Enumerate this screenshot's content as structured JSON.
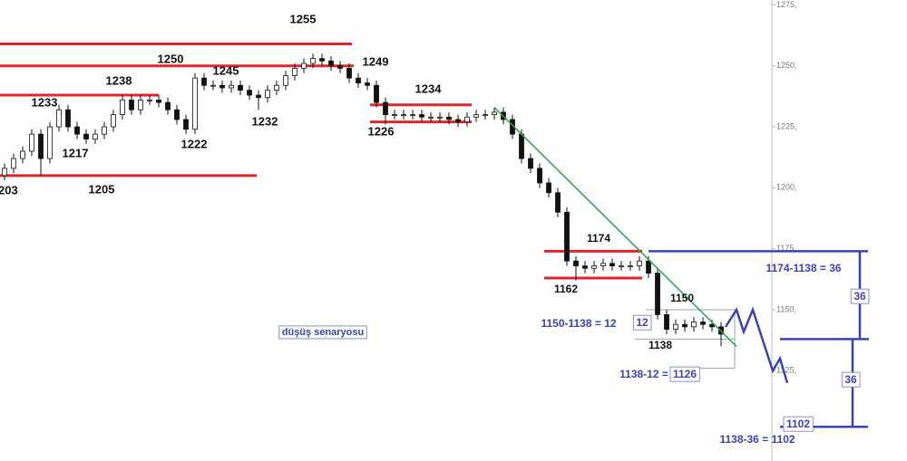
{
  "chart_data": {
    "type": "candlestick",
    "open": [
      1205,
      1208,
      1212,
      1215,
      1222,
      1212,
      1225,
      1232,
      1225,
      1222,
      1220,
      1222,
      1225,
      1230,
      1236,
      1232,
      1236,
      1236,
      1235,
      1232,
      1228,
      1224,
      1245,
      1242,
      1242,
      1241,
      1242,
      1240,
      1238,
      1237,
      1240,
      1242,
      1246,
      1249,
      1251,
      1253,
      1252,
      1250,
      1249,
      1245,
      1243,
      1242,
      1235,
      1230,
      1230,
      1230,
      1230,
      1229,
      1229,
      1229,
      1228,
      1227,
      1229,
      1230,
      1230,
      1231,
      1228,
      1222,
      1212,
      1208,
      1202,
      1198,
      1190,
      1170,
      1168,
      1167,
      1168,
      1169,
      1168,
      1168,
      1168,
      1170,
      1165,
      1148,
      1142,
      1144,
      1143,
      1145,
      1144,
      1143
    ],
    "high": [
      1210,
      1214,
      1217,
      1224,
      1224,
      1227,
      1234,
      1234,
      1227,
      1224,
      1224,
      1227,
      1232,
      1238,
      1238,
      1238,
      1238,
      1238,
      1237,
      1234,
      1230,
      1247,
      1247,
      1244,
      1244,
      1244,
      1244,
      1242,
      1240,
      1242,
      1244,
      1248,
      1251,
      1253,
      1255,
      1255,
      1254,
      1252,
      1251,
      1247,
      1245,
      1244,
      1237,
      1232,
      1232,
      1232,
      1232,
      1231,
      1231,
      1231,
      1230,
      1231,
      1232,
      1232,
      1233,
      1233,
      1230,
      1224,
      1214,
      1210,
      1204,
      1200,
      1192,
      1172,
      1170,
      1170,
      1171,
      1171,
      1170,
      1170,
      1172,
      1172,
      1167,
      1150,
      1146,
      1146,
      1147,
      1147,
      1146,
      1145
    ],
    "low": [
      1203,
      1206,
      1210,
      1213,
      1205,
      1210,
      1223,
      1223,
      1220,
      1218,
      1218,
      1220,
      1223,
      1228,
      1230,
      1230,
      1234,
      1233,
      1230,
      1226,
      1222,
      1222,
      1240,
      1240,
      1239,
      1239,
      1238,
      1236,
      1232,
      1235,
      1238,
      1240,
      1244,
      1247,
      1249,
      1250,
      1248,
      1247,
      1243,
      1241,
      1240,
      1233,
      1226,
      1228,
      1228,
      1228,
      1227,
      1227,
      1227,
      1226,
      1225,
      1225,
      1227,
      1228,
      1228,
      1226,
      1220,
      1210,
      1206,
      1200,
      1196,
      1188,
      1168,
      1162,
      1165,
      1165,
      1166,
      1166,
      1166,
      1166,
      1166,
      1163,
      1146,
      1140,
      1140,
      1141,
      1141,
      1142,
      1141,
      1135
    ],
    "close": [
      1208,
      1212,
      1215,
      1222,
      1212,
      1225,
      1232,
      1225,
      1222,
      1220,
      1222,
      1225,
      1230,
      1236,
      1232,
      1236,
      1236,
      1235,
      1232,
      1228,
      1224,
      1245,
      1242,
      1242,
      1241,
      1242,
      1240,
      1238,
      1237,
      1240,
      1242,
      1246,
      1249,
      1251,
      1253,
      1252,
      1250,
      1249,
      1245,
      1243,
      1242,
      1235,
      1230,
      1230,
      1230,
      1230,
      1229,
      1229,
      1229,
      1228,
      1227,
      1229,
      1230,
      1230,
      1231,
      1228,
      1222,
      1212,
      1208,
      1202,
      1198,
      1190,
      1170,
      1168,
      1167,
      1168,
      1169,
      1168,
      1168,
      1168,
      1170,
      1165,
      1148,
      1142,
      1144,
      1143,
      1145,
      1144,
      1143,
      1140
    ],
    "ylim": [
      1088,
      1277
    ],
    "yticks": [
      {
        "value": 1275,
        "label": "1275,"
      },
      {
        "value": 1250,
        "label": "1250,"
      },
      {
        "value": 1225,
        "label": "1225,"
      },
      {
        "value": 1200,
        "label": "1200,"
      },
      {
        "value": 1175,
        "label": "1175,"
      },
      {
        "value": 1150,
        "label": "1150,"
      },
      {
        "value": 1125,
        "label": "1125,"
      }
    ],
    "levels": [
      {
        "value": 1259,
        "color": "#e0262b"
      },
      {
        "value": 1250,
        "color": "#e0262b"
      },
      {
        "value": 1238,
        "color": "#e0262b"
      },
      {
        "value": 1205,
        "color": "#e0262b"
      },
      {
        "value": 1234,
        "color": "#e0262b"
      },
      {
        "value": 1227,
        "color": "#e0262b"
      },
      {
        "value": 1174,
        "color": "#e0262b"
      },
      {
        "value": 1163,
        "color": "#e0262b"
      },
      {
        "value": 1174,
        "color": "#3a44b0"
      },
      {
        "value": 1138,
        "color": "#3a44b0"
      },
      {
        "value": 1102,
        "color": "#3a44b0"
      },
      {
        "value": 1150,
        "color": "#9aa0b8"
      },
      {
        "value": 1138,
        "color": "#9aa0b8"
      },
      {
        "value": 1126,
        "color": "#9aa0b8"
      }
    ],
    "trendline": {
      "values": [
        1233,
        1135
      ],
      "color": "#22a845"
    },
    "projection": {
      "values": [
        1143,
        1150,
        1141,
        1150,
        1125,
        1130,
        1120
      ],
      "color": "#3a44b0"
    },
    "annotations": [
      {
        "text": "1255",
        "color": "#111"
      },
      {
        "text": "1250",
        "color": "#111"
      },
      {
        "text": "1245",
        "color": "#111"
      },
      {
        "text": "1249",
        "color": "#111"
      },
      {
        "text": "1238",
        "color": "#111"
      },
      {
        "text": "1233",
        "color": "#111"
      },
      {
        "text": "1234",
        "color": "#111"
      },
      {
        "text": "1217",
        "color": "#111"
      },
      {
        "text": "1222",
        "color": "#111"
      },
      {
        "text": "1232",
        "color": "#111"
      },
      {
        "text": "1226",
        "color": "#111"
      },
      {
        "text": "203",
        "color": "#111"
      },
      {
        "text": "1205",
        "color": "#111"
      },
      {
        "text": "1174",
        "color": "#111"
      },
      {
        "text": "1162",
        "color": "#111"
      },
      {
        "text": "1150",
        "color": "#111"
      },
      {
        "text": "1138",
        "color": "#111"
      },
      {
        "text": "1150-1138 = 12",
        "color": "#3a44b0"
      },
      {
        "text": "12",
        "color": "#3a44b0"
      },
      {
        "text": "1138-12 =",
        "color": "#3a44b0"
      },
      {
        "text": "1126",
        "color": "#3a44b0"
      },
      {
        "text": "1174-1138 = 36",
        "color": "#3a44b0"
      },
      {
        "text": "36",
        "color": "#3a44b0"
      },
      {
        "text": "36",
        "color": "#3a44b0"
      },
      {
        "text": "1102",
        "color": "#3a44b0"
      },
      {
        "text": "1138-36 = 1102",
        "color": "#3a44b0"
      },
      {
        "text": "düşüş senaryosu",
        "color": "#3a44b0"
      }
    ]
  }
}
